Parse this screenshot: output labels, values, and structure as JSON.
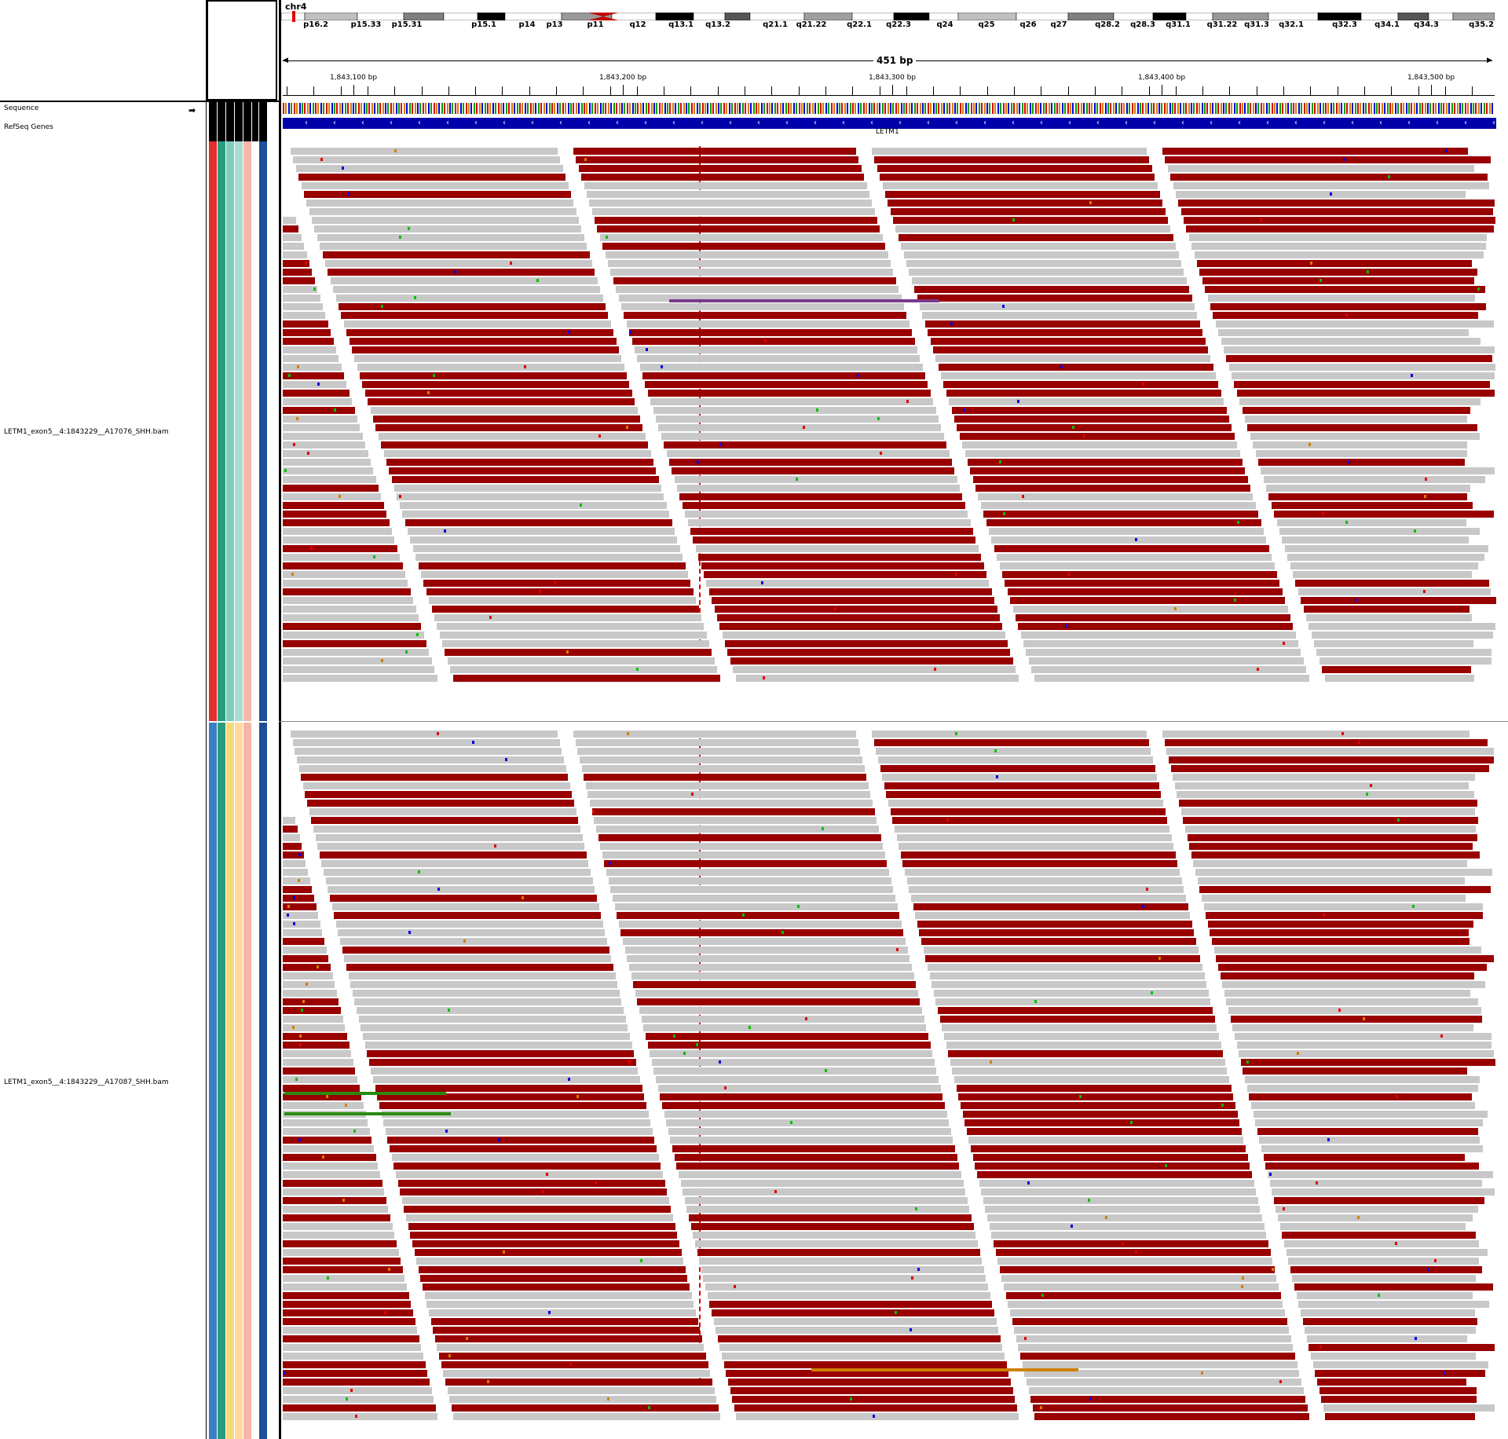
{
  "header": {
    "chromosome": "chr4",
    "span_label": "451 bp",
    "bands": [
      {
        "name": "p16.2",
        "pos": 402
      },
      {
        "name": "p15.33",
        "pos": 466
      },
      {
        "name": "p15.31",
        "pos": 518
      },
      {
        "name": "p15.1",
        "pos": 616
      },
      {
        "name": "p14",
        "pos": 671
      },
      {
        "name": "p13",
        "pos": 706
      },
      {
        "name": "p11",
        "pos": 758
      },
      {
        "name": "q12",
        "pos": 812
      },
      {
        "name": "q13.1",
        "pos": 867
      },
      {
        "name": "q13.2",
        "pos": 914
      },
      {
        "name": "q21.1",
        "pos": 987
      },
      {
        "name": "q21.22",
        "pos": 1033
      },
      {
        "name": "q22.1",
        "pos": 1094
      },
      {
        "name": "q22.3",
        "pos": 1144
      },
      {
        "name": "q24",
        "pos": 1203
      },
      {
        "name": "q25",
        "pos": 1256
      },
      {
        "name": "q26",
        "pos": 1309
      },
      {
        "name": "q27",
        "pos": 1348
      },
      {
        "name": "q28.2",
        "pos": 1410
      },
      {
        "name": "q28.3",
        "pos": 1455
      },
      {
        "name": "q31.1",
        "pos": 1500
      },
      {
        "name": "q31.22",
        "pos": 1556
      },
      {
        "name": "q31.3",
        "pos": 1600
      },
      {
        "name": "q32.1",
        "pos": 1644
      },
      {
        "name": "q32.3",
        "pos": 1712
      },
      {
        "name": "q34.1",
        "pos": 1766
      },
      {
        "name": "q34.3",
        "pos": 1816
      },
      {
        "name": "q35.2",
        "pos": 1886
      }
    ],
    "ruler": [
      {
        "label": "1,843,100 bp",
        "pos": 450
      },
      {
        "label": "1,843,200 bp",
        "pos": 793
      },
      {
        "label": "1,843,300 bp",
        "pos": 1136
      },
      {
        "label": "1,843,400 bp",
        "pos": 1479
      },
      {
        "label": "1,843,500 bp",
        "pos": 1822
      }
    ]
  },
  "tracks": {
    "sequence_label": "Sequence",
    "refseq_label": "RefSeq Genes",
    "gene_name": "LETM1",
    "bam1_label": "LETM1_exon5__4:1843229__A17076_SHH.bam",
    "bam2_label": "LETM1_exon5__4:1843229__A17087_SHH.bam"
  },
  "colors": {
    "forward_read": "#990000",
    "reverse_read": "#c8c8c8",
    "gene": "#0000aa",
    "center_line": "#e00000"
  },
  "attributes": {
    "sample1": [
      "#e32c2c",
      "#2a9d80",
      "#7fcdbb",
      "#a8dcd0",
      "#f4b6a8",
      "#ffffff",
      "#1f4e99"
    ],
    "sample2": [
      "#3a7fc1",
      "#2a9d80",
      "#f7d97a",
      "#ffd8a0",
      "#f4b6a8",
      "#ffffff",
      "#1f4e99"
    ]
  }
}
